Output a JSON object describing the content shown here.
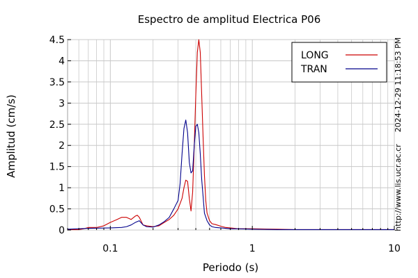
{
  "chart_data": {
    "type": "line",
    "title": "Espectro de amplitud Electrica P06",
    "xlabel": "Periodo (s)",
    "ylabel": "Amplitud (cm/s)",
    "x_scale": "log",
    "xlim": [
      0.05,
      10
    ],
    "ylim": [
      0,
      4.5
    ],
    "grid": true,
    "legend_position": "top-right",
    "x_ticks": [
      {
        "value": 0.1,
        "label": "0.1"
      },
      {
        "value": 1,
        "label": "1"
      },
      {
        "value": 10,
        "label": "10"
      }
    ],
    "y_ticks": [
      {
        "value": 0,
        "label": "0"
      },
      {
        "value": 0.5,
        "label": "0.5"
      },
      {
        "value": 1,
        "label": "1"
      },
      {
        "value": 1.5,
        "label": "1.5"
      },
      {
        "value": 2,
        "label": "2"
      },
      {
        "value": 2.5,
        "label": "2.5"
      },
      {
        "value": 3,
        "label": "3"
      },
      {
        "value": 3.5,
        "label": "3.5"
      },
      {
        "value": 4,
        "label": "4"
      },
      {
        "value": 4.5,
        "label": "4.5"
      }
    ],
    "series": [
      {
        "name": "LONG",
        "color": "#cc0000",
        "x": [
          0.05,
          0.06,
          0.065,
          0.07,
          0.08,
          0.09,
          0.1,
          0.11,
          0.12,
          0.13,
          0.14,
          0.15,
          0.155,
          0.16,
          0.17,
          0.18,
          0.2,
          0.22,
          0.24,
          0.26,
          0.28,
          0.3,
          0.32,
          0.33,
          0.34,
          0.35,
          0.36,
          0.37,
          0.38,
          0.39,
          0.4,
          0.41,
          0.42,
          0.43,
          0.44,
          0.45,
          0.46,
          0.47,
          0.48,
          0.5,
          0.52,
          0.55,
          0.6,
          0.65,
          0.7,
          0.8,
          1,
          1.5,
          2,
          3,
          5,
          10
        ],
        "y": [
          0.01,
          0.01,
          0.03,
          0.06,
          0.06,
          0.1,
          0.18,
          0.24,
          0.3,
          0.3,
          0.25,
          0.33,
          0.35,
          0.3,
          0.12,
          0.1,
          0.08,
          0.1,
          0.18,
          0.25,
          0.35,
          0.5,
          0.75,
          1.0,
          1.18,
          1.15,
          0.75,
          0.45,
          0.9,
          2.0,
          3.2,
          4.2,
          4.5,
          4.2,
          3.2,
          2.2,
          1.3,
          0.7,
          0.4,
          0.22,
          0.15,
          0.13,
          0.09,
          0.06,
          0.05,
          0.03,
          0.03,
          0.02,
          0.01,
          0.01,
          0.01,
          0.01
        ]
      },
      {
        "name": "TRAN",
        "color": "#00008b",
        "x": [
          0.05,
          0.07,
          0.1,
          0.12,
          0.13,
          0.14,
          0.15,
          0.16,
          0.17,
          0.18,
          0.2,
          0.22,
          0.24,
          0.26,
          0.28,
          0.3,
          0.31,
          0.32,
          0.33,
          0.34,
          0.35,
          0.36,
          0.37,
          0.38,
          0.39,
          0.4,
          0.41,
          0.42,
          0.43,
          0.44,
          0.45,
          0.46,
          0.48,
          0.5,
          0.52,
          0.55,
          0.6,
          0.65,
          0.7,
          0.8,
          1,
          1.5,
          2,
          3,
          5,
          10
        ],
        "y": [
          0.02,
          0.04,
          0.05,
          0.06,
          0.08,
          0.12,
          0.18,
          0.22,
          0.12,
          0.08,
          0.07,
          0.12,
          0.2,
          0.3,
          0.5,
          0.7,
          1.1,
          1.8,
          2.4,
          2.6,
          2.3,
          1.6,
          1.35,
          1.4,
          2.0,
          2.45,
          2.5,
          2.3,
          1.8,
          1.2,
          0.8,
          0.4,
          0.22,
          0.12,
          0.08,
          0.06,
          0.05,
          0.04,
          0.03,
          0.03,
          0.02,
          0.01,
          0.01,
          0.01,
          0.01,
          0.01
        ]
      }
    ]
  },
  "side_text": {
    "timestamp": "2024-12-29 11:18:53 PM",
    "url": "http://www.lis.ucr.ac.cr"
  }
}
